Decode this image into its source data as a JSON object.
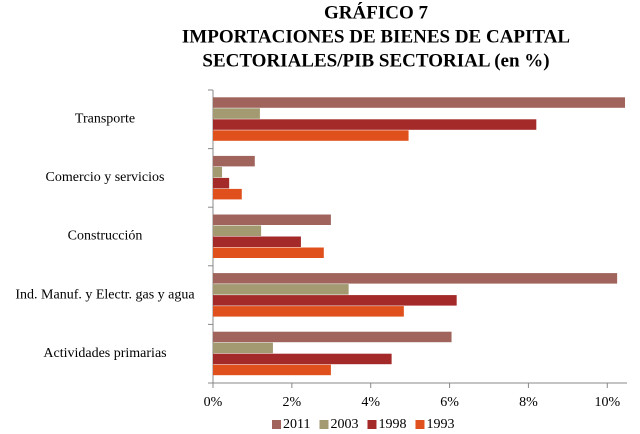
{
  "chart_data": {
    "type": "bar",
    "orientation": "horizontal",
    "title": [
      "GRÁFICO 7",
      "IMPORTACIONES DE BIENES DE CAPITAL",
      "SECTORIALES/PIB SECTORIAL (en %)"
    ],
    "categories": [
      "Transporte",
      "Comercio y servicios",
      "Construcción",
      "Ind. Manuf. y Electr. gas y agua",
      "Actividades primarias"
    ],
    "series": [
      {
        "name": "2011",
        "color": "#a0645c",
        "values": [
          10.45,
          1.06,
          2.99,
          10.25,
          6.05
        ]
      },
      {
        "name": "2003",
        "color": "#a39a72",
        "values": [
          1.19,
          0.23,
          1.22,
          3.44,
          1.52
        ]
      },
      {
        "name": "1998",
        "color": "#a32a28",
        "values": [
          8.2,
          0.41,
          2.23,
          6.18,
          4.53
        ]
      },
      {
        "name": "1993",
        "color": "#e0501c",
        "values": [
          4.96,
          0.73,
          2.81,
          4.84,
          2.99
        ]
      }
    ],
    "xlim": [
      0,
      10.5
    ],
    "xticks": [
      {
        "value": 0,
        "label": "0%"
      },
      {
        "value": 2,
        "label": "2%"
      },
      {
        "value": 4,
        "label": "4%"
      },
      {
        "value": 6,
        "label": "6%"
      },
      {
        "value": 8,
        "label": "8%"
      },
      {
        "value": 10,
        "label": "10%"
      }
    ],
    "legend": "bottom"
  }
}
